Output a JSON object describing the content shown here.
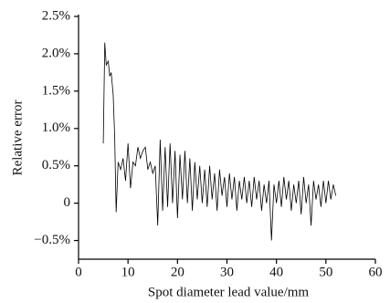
{
  "chart_data": {
    "type": "line",
    "x_label": "Spot diameter lead value/mm",
    "y_label": "Relative error",
    "x": [
      5,
      5.3,
      5.6,
      6,
      6.3,
      6.6,
      7,
      7.3,
      7.6,
      8,
      8.5,
      9,
      9.5,
      10,
      10.5,
      11,
      11.5,
      12,
      12.5,
      13,
      13.5,
      14,
      14.5,
      15,
      15.5,
      16,
      16.5,
      17,
      17.5,
      18,
      18.5,
      19,
      19.5,
      20,
      20.5,
      21,
      21.5,
      22,
      22.5,
      23,
      23.5,
      24,
      24.5,
      25,
      25.5,
      26,
      26.5,
      27,
      27.5,
      28,
      28.5,
      29,
      29.5,
      30,
      30.5,
      31,
      31.5,
      32,
      32.5,
      33,
      33.5,
      34,
      34.5,
      35,
      35.5,
      36,
      36.5,
      37,
      37.5,
      38,
      38.5,
      39,
      39.5,
      40,
      40.5,
      41,
      41.5,
      42,
      42.5,
      43,
      43.5,
      44,
      44.5,
      45,
      45.5,
      46,
      46.5,
      47,
      47.5,
      48,
      48.5,
      49,
      49.5,
      50,
      50.5,
      51,
      51.5,
      52
    ],
    "values": [
      0.8,
      2.15,
      1.85,
      1.9,
      1.7,
      1.75,
      1.45,
      0.9,
      -0.12,
      0.55,
      0.45,
      0.6,
      0.3,
      0.8,
      0.2,
      0.55,
      0.5,
      0.75,
      0.6,
      0.7,
      0.75,
      0.45,
      0.55,
      0.4,
      0.5,
      -0.3,
      0.85,
      -0.1,
      0.75,
      -0.05,
      0.8,
      0.0,
      0.7,
      -0.2,
      0.65,
      0.05,
      0.7,
      0.0,
      0.6,
      -0.1,
      0.55,
      0.05,
      0.5,
      0.0,
      0.45,
      -0.05,
      0.5,
      0.05,
      0.4,
      -0.1,
      0.45,
      0.1,
      0.35,
      -0.05,
      0.4,
      0.05,
      0.35,
      -0.1,
      0.3,
      0.05,
      0.35,
      0,
      0.3,
      -0.05,
      0.35,
      0.05,
      0.3,
      -0.1,
      0.25,
      0,
      0.3,
      -0.5,
      0.25,
      0,
      0.3,
      -0.05,
      0.35,
      0.05,
      0.3,
      -0.1,
      0.25,
      0,
      0.3,
      -0.15,
      0.35,
      0,
      0.25,
      -0.3,
      0.3,
      0.05,
      0.25,
      -0.05,
      0.3,
      0,
      0.3,
      0.05,
      0.25,
      0.1
    ],
    "color": "#000000",
    "xlim": [
      0,
      60
    ],
    "xticks": [
      0,
      10,
      20,
      30,
      40,
      50,
      60
    ],
    "ylim": [
      -0.75,
      2.5
    ],
    "yticks": [
      {
        "value": -0.5,
        "label": "−0.5%"
      },
      0,
      {
        "value": 0.5,
        "label": "0.5%"
      },
      {
        "value": 1.0,
        "label": "1.0%"
      },
      {
        "value": 1.5,
        "label": "1.5%"
      },
      {
        "value": 2.0,
        "label": "2.0%"
      },
      {
        "value": 2.5,
        "label": "2.5%"
      }
    ]
  }
}
